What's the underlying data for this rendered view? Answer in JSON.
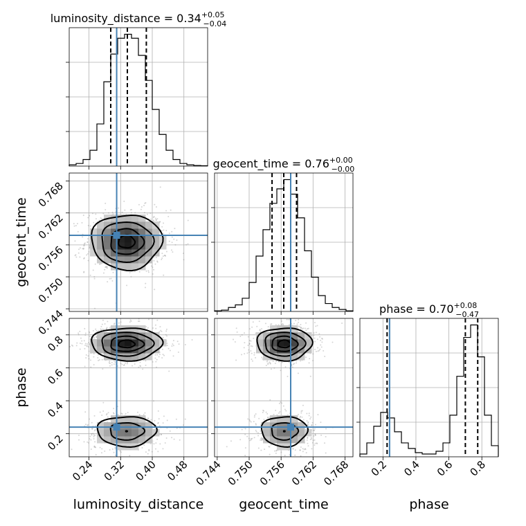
{
  "chart_data": {
    "type": "corner",
    "parameters": [
      "luminosity_distance",
      "geocent_time",
      "phase"
    ],
    "titles": [
      {
        "param": "luminosity_distance",
        "median": "0.34",
        "plus": "+0.05",
        "minus": "−0.04"
      },
      {
        "param": "geocent_time",
        "median": "0.76",
        "plus": "+0.00",
        "minus": "−0.00"
      },
      {
        "param": "phase",
        "median": "0.70",
        "plus": "+0.08",
        "minus": "−0.47"
      }
    ],
    "truths": {
      "luminosity_distance": 0.31,
      "geocent_time": 0.7578,
      "phase": 0.24
    },
    "axes": {
      "luminosity_distance": {
        "range": [
          0.19,
          0.54
        ],
        "ticks": [
          "0.24",
          "0.32",
          "0.40",
          "0.48"
        ],
        "tick_values": [
          0.24,
          0.32,
          0.4,
          0.48
        ]
      },
      "geocent_time": {
        "range": [
          0.7435,
          0.7695
        ],
        "ticks": [
          "0.744",
          "0.750",
          "0.756",
          "0.762",
          "0.768"
        ],
        "tick_values": [
          0.744,
          0.75,
          0.756,
          0.762,
          0.768
        ]
      },
      "phase": {
        "range": [
          0.06,
          0.9
        ],
        "ticks": [
          "0.2",
          "0.4",
          "0.6",
          "0.8"
        ],
        "tick_values": [
          0.2,
          0.4,
          0.6,
          0.8
        ]
      }
    },
    "histograms": {
      "luminosity_distance": {
        "quantiles": [
          0.295,
          0.337,
          0.385
        ],
        "bins": [
          0.19,
          0.2075,
          0.225,
          0.2425,
          0.26,
          0.2775,
          0.295,
          0.3125,
          0.33,
          0.3475,
          0.365,
          0.3825,
          0.4,
          0.4175,
          0.435,
          0.4525,
          0.47,
          0.4875,
          0.505,
          0.5225,
          0.54
        ],
        "counts": [
          1,
          2,
          5,
          12,
          32,
          64,
          85,
          97,
          100,
          97,
          84,
          65,
          43,
          24,
          12,
          5,
          2,
          1,
          0.5,
          0.3
        ]
      },
      "geocent_time": {
        "quantiles": [
          0.7543,
          0.7565,
          0.7589
        ],
        "bins": [
          0.7435,
          0.7448,
          0.7461,
          0.7474,
          0.7487,
          0.75,
          0.7513,
          0.7526,
          0.7539,
          0.7552,
          0.7565,
          0.7578,
          0.7591,
          0.7604,
          0.7617,
          0.763,
          0.7643,
          0.7656,
          0.7669,
          0.7682,
          0.7695
        ],
        "counts": [
          0.5,
          1,
          3,
          5,
          10,
          22,
          42,
          62,
          82,
          93,
          100,
          89,
          71,
          46,
          26,
          12,
          6,
          3,
          1.5,
          0.5
        ]
      },
      "phase": {
        "quantiles": [
          0.225,
          0.7,
          0.775
        ],
        "bins": [
          0.06,
          0.102,
          0.144,
          0.186,
          0.228,
          0.27,
          0.312,
          0.354,
          0.396,
          0.438,
          0.48,
          0.522,
          0.564,
          0.606,
          0.648,
          0.69,
          0.732,
          0.774,
          0.816,
          0.858,
          0.9
        ],
        "counts": [
          2,
          10,
          22,
          32,
          28,
          18,
          10,
          6,
          3,
          2,
          2,
          4,
          10,
          30,
          58,
          86,
          95,
          72,
          30,
          8
        ]
      }
    },
    "density_modes": {
      "luminosity_distance-geocent_time": [
        {
          "x": 0.335,
          "y": 0.7566,
          "sx": 0.045,
          "sy": 0.0026,
          "w": 1
        }
      ],
      "luminosity_distance-phase": [
        {
          "x": 0.335,
          "y": 0.745,
          "sx": 0.045,
          "sy": 0.05,
          "w": 1
        },
        {
          "x": 0.335,
          "y": 0.215,
          "sx": 0.045,
          "sy": 0.055,
          "w": 0.55
        }
      ],
      "geocent_time-phase": [
        {
          "x": 0.7566,
          "y": 0.745,
          "sx": 0.0026,
          "sy": 0.05,
          "w": 1
        },
        {
          "x": 0.7566,
          "y": 0.215,
          "sx": 0.0026,
          "sy": 0.055,
          "w": 0.55
        }
      ]
    },
    "grid": true
  }
}
